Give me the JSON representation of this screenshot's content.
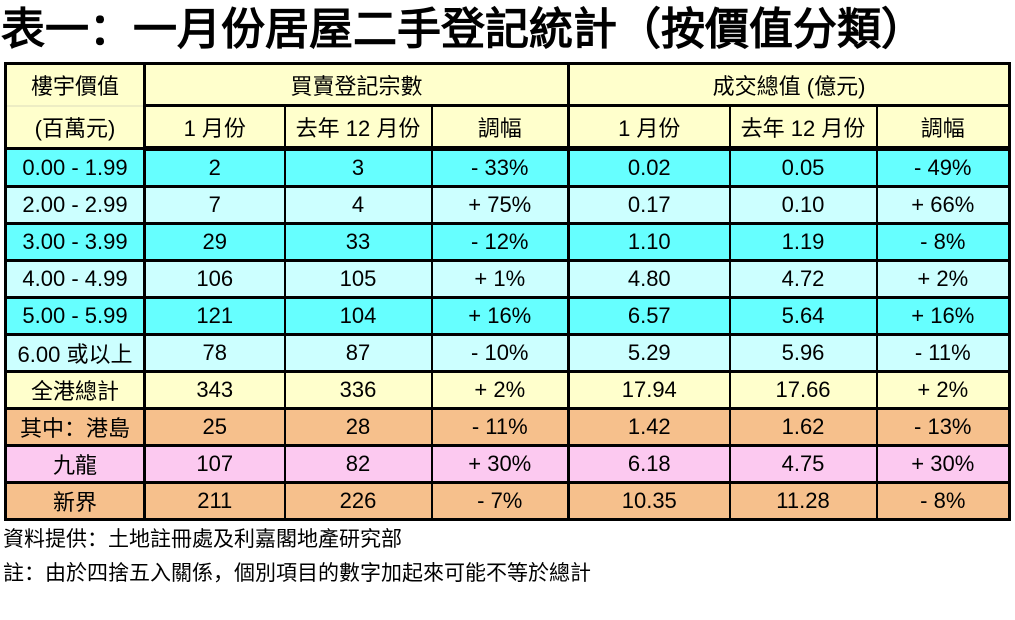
{
  "title": "表一：一月份居屋二手登記統計（按價值分類）",
  "colors": {
    "cyan_bright": "#66FFFF",
    "cyan_light": "#CCFFFF",
    "yellow_pale": "#FFFFCC",
    "peach": "#F6C08C",
    "pink": "#FCC9F0",
    "border": "#000000",
    "header_bg": "#FFFFCC"
  },
  "table": {
    "header": {
      "row_label_title": "樓宇價值",
      "row_label_unit": "(百萬元)",
      "group_registrations": "買賣登記宗數",
      "group_value": "成交總值 (億元)",
      "sub": [
        "1 月份",
        "去年 12 月份",
        "調幅",
        "1 月份",
        "去年 12 月份",
        "調幅"
      ]
    },
    "rows": [
      {
        "label": "0.00 - 1.99",
        "bg": "cyan_bright",
        "values": [
          "2",
          "3",
          "- 33%",
          "0.02",
          "0.05",
          "- 49%"
        ]
      },
      {
        "label": "2.00 - 2.99",
        "bg": "cyan_light",
        "values": [
          "7",
          "4",
          "+ 75%",
          "0.17",
          "0.10",
          "+ 66%"
        ]
      },
      {
        "label": "3.00 - 3.99",
        "bg": "cyan_bright",
        "values": [
          "29",
          "33",
          "- 12%",
          "1.10",
          "1.19",
          "- 8%"
        ]
      },
      {
        "label": "4.00 - 4.99",
        "bg": "cyan_light",
        "values": [
          "106",
          "105",
          "+ 1%",
          "4.80",
          "4.72",
          "+ 2%"
        ]
      },
      {
        "label": "5.00 - 5.99",
        "bg": "cyan_bright",
        "values": [
          "121",
          "104",
          "+ 16%",
          "6.57",
          "5.64",
          "+ 16%"
        ]
      },
      {
        "label": "6.00 或以上",
        "bg": "cyan_light",
        "values": [
          "78",
          "87",
          "- 10%",
          "5.29",
          "5.96",
          "- 11%"
        ]
      },
      {
        "label": "全港總計",
        "bg": "yellow_pale",
        "values": [
          "343",
          "336",
          "+ 2%",
          "17.94",
          "17.66",
          "+ 2%"
        ]
      },
      {
        "label": "其中：港島",
        "bg": "peach",
        "values": [
          "25",
          "28",
          "- 11%",
          "1.42",
          "1.62",
          "- 13%"
        ]
      },
      {
        "label": "九龍",
        "bg": "pink",
        "values": [
          "107",
          "82",
          "+ 30%",
          "6.18",
          "4.75",
          "+ 30%"
        ]
      },
      {
        "label": "新界",
        "bg": "peach",
        "values": [
          "211",
          "226",
          "- 7%",
          "10.35",
          "11.28",
          "- 8%"
        ]
      }
    ]
  },
  "footer": {
    "source": "資料提供：土地註冊處及利嘉閣地產研究部",
    "note": "註：由於四捨五入關係，個別項目的數字加起來可能不等於總計"
  }
}
